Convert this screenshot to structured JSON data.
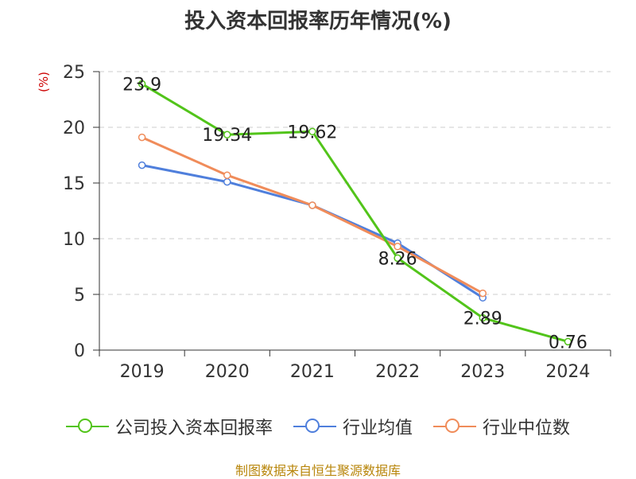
{
  "title": "投入资本回报率历年情况(%)",
  "footer": "制图数据来自恒生聚源数据库",
  "colors": {
    "company": "#52c41a",
    "industry_avg": "#4f7fdc",
    "industry_median": "#f08c5a"
  },
  "chart_data": {
    "type": "line",
    "title": "投入资本回报率历年情况(%)",
    "xlabel": "",
    "ylabel": "(%)",
    "categories": [
      "2019",
      "2020",
      "2021",
      "2022",
      "2023",
      "2024"
    ],
    "ylim": [
      0,
      25
    ],
    "yticks": [
      0,
      5,
      10,
      15,
      20,
      25
    ],
    "grid": true,
    "legend_position": "bottom",
    "series": [
      {
        "name": "公司投入资本回报率",
        "values": [
          23.9,
          19.34,
          19.62,
          8.26,
          2.89,
          0.76
        ],
        "labels": [
          "23.9",
          "19.34",
          "19.62",
          "8.26",
          "2.89",
          "0.76"
        ]
      },
      {
        "name": "行业均值",
        "values": [
          16.6,
          15.1,
          13.0,
          9.6,
          4.7,
          null
        ]
      },
      {
        "name": "行业中位数",
        "values": [
          19.1,
          15.7,
          13.0,
          9.3,
          5.1,
          null
        ]
      }
    ]
  }
}
